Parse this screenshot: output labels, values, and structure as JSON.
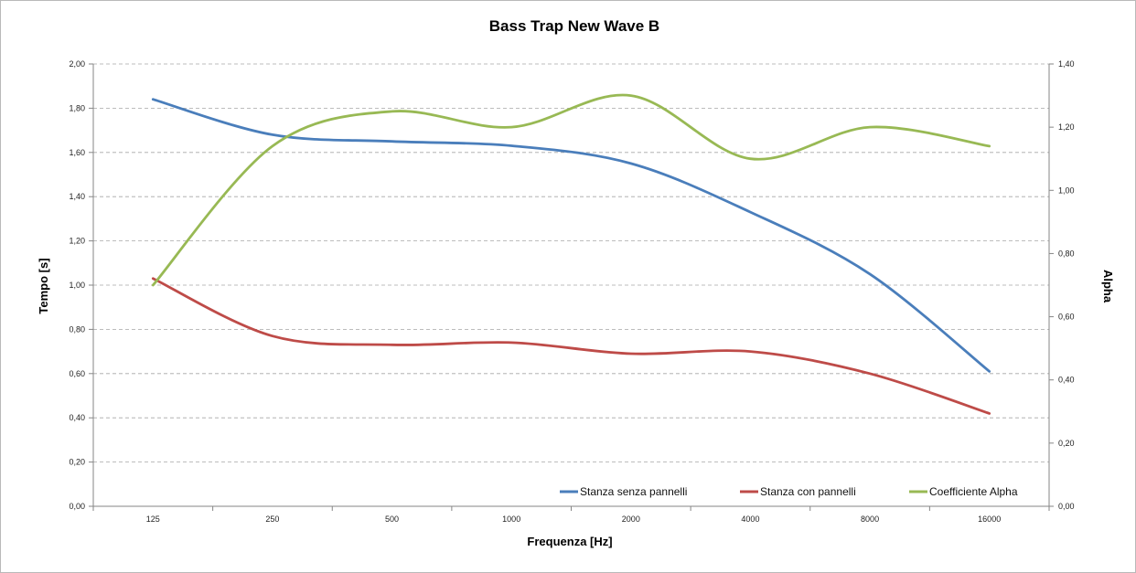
{
  "chart_data": {
    "type": "line",
    "title": "Bass Trap New Wave B",
    "xlabel": "Frequenza [Hz]",
    "ylabel": "Tempo [s]",
    "y2label": "Alpha",
    "categories": [
      "125",
      "250",
      "500",
      "1000",
      "2000",
      "4000",
      "8000",
      "16000"
    ],
    "ylim": [
      0,
      2.0
    ],
    "y2lim": [
      0,
      1.4
    ],
    "y_ticks": [
      "0,00",
      "0,20",
      "0,40",
      "0,60",
      "0,80",
      "1,00",
      "1,20",
      "1,40",
      "1,60",
      "1,80",
      "2,00"
    ],
    "y2_ticks": [
      "0,00",
      "0,20",
      "0,40",
      "0,60",
      "0,80",
      "1,00",
      "1,20",
      "1,40"
    ],
    "grid": true,
    "legend_position": "bottom-right",
    "series": [
      {
        "name": "Stanza senza pannelli",
        "axis": "left",
        "color": "#4a7ebb",
        "values": [
          1.84,
          1.68,
          1.65,
          1.63,
          1.55,
          1.33,
          1.05,
          0.61
        ]
      },
      {
        "name": "Stanza con pannelli",
        "axis": "left",
        "color": "#be4b48",
        "values": [
          1.03,
          0.77,
          0.73,
          0.74,
          0.69,
          0.7,
          0.6,
          0.42
        ]
      },
      {
        "name": "Coefficiente Alpha",
        "axis": "right",
        "color": "#98b954",
        "values": [
          0.7,
          1.14,
          1.25,
          1.2,
          1.3,
          1.1,
          1.2,
          1.14
        ]
      }
    ]
  }
}
